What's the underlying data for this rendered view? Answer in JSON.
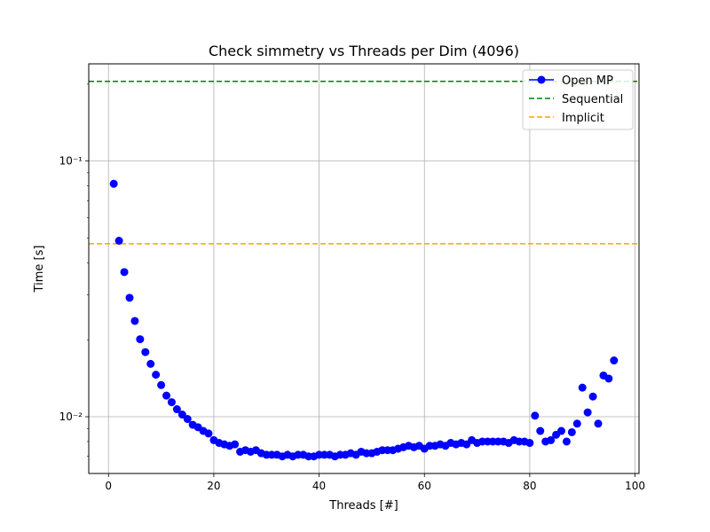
{
  "chart_data": {
    "type": "line",
    "title": "Check simmetry vs Threads per Dim (4096)",
    "xlabel": "Threads [#]",
    "ylabel": "Time [s]",
    "xlim": [
      -3.75,
      100.75
    ],
    "ylim": [
      0.006,
      0.24
    ],
    "yscale": "log",
    "grid": true,
    "legend_position": "top-right",
    "x_ticks": [
      0,
      20,
      40,
      60,
      80,
      100
    ],
    "x_tick_labels": [
      "0",
      "20",
      "40",
      "60",
      "80",
      "100"
    ],
    "y_ticks": [
      0.01,
      0.1
    ],
    "y_tick_labels": [
      "10⁻²",
      "10⁻¹"
    ],
    "series": [
      {
        "name": "Open MP",
        "kind": "markers",
        "color": "#0000ff",
        "x": [
          1,
          2,
          3,
          4,
          5,
          6,
          7,
          8,
          9,
          10,
          11,
          12,
          13,
          14,
          15,
          16,
          17,
          18,
          19,
          20,
          21,
          22,
          23,
          24,
          25,
          26,
          27,
          28,
          29,
          30,
          31,
          32,
          33,
          34,
          35,
          36,
          37,
          38,
          39,
          40,
          41,
          42,
          43,
          44,
          45,
          46,
          47,
          48,
          49,
          50,
          51,
          52,
          53,
          54,
          55,
          56,
          57,
          58,
          59,
          60,
          61,
          62,
          63,
          64,
          65,
          66,
          67,
          68,
          69,
          70,
          71,
          72,
          73,
          74,
          75,
          76,
          77,
          78,
          79,
          80,
          81,
          82,
          83,
          84,
          85,
          86,
          87,
          88,
          89,
          90,
          91,
          92,
          93,
          94,
          95,
          96
        ],
        "values": [
          0.0815,
          0.0488,
          0.0368,
          0.0292,
          0.0237,
          0.0201,
          0.0179,
          0.0161,
          0.0146,
          0.0133,
          0.0121,
          0.0114,
          0.0107,
          0.0102,
          0.0098,
          0.0093,
          0.0091,
          0.0088,
          0.0086,
          0.0081,
          0.0079,
          0.0078,
          0.0077,
          0.0078,
          0.0073,
          0.0074,
          0.0073,
          0.0074,
          0.0072,
          0.0071,
          0.0071,
          0.0071,
          0.007,
          0.0071,
          0.007,
          0.0071,
          0.0071,
          0.007,
          0.007,
          0.0071,
          0.0071,
          0.0071,
          0.007,
          0.0071,
          0.0071,
          0.0072,
          0.0071,
          0.0073,
          0.0072,
          0.0072,
          0.0073,
          0.0074,
          0.0074,
          0.0074,
          0.0075,
          0.0076,
          0.0077,
          0.0076,
          0.0077,
          0.0075,
          0.0077,
          0.0077,
          0.0078,
          0.0077,
          0.0079,
          0.0078,
          0.0079,
          0.0078,
          0.0081,
          0.0079,
          0.008,
          0.008,
          0.008,
          0.008,
          0.008,
          0.0079,
          0.0081,
          0.008,
          0.008,
          0.0079,
          0.0101,
          0.0088,
          0.008,
          0.0081,
          0.0085,
          0.0088,
          0.008,
          0.0087,
          0.0094,
          0.013,
          0.0104,
          0.012,
          0.0094,
          0.0145,
          0.0141,
          0.0166
        ]
      },
      {
        "name": "Sequential",
        "kind": "hline",
        "color": "#008000",
        "value": 0.205
      },
      {
        "name": "Implicit",
        "kind": "hline",
        "color": "#ffa500",
        "value": 0.0475
      }
    ]
  }
}
